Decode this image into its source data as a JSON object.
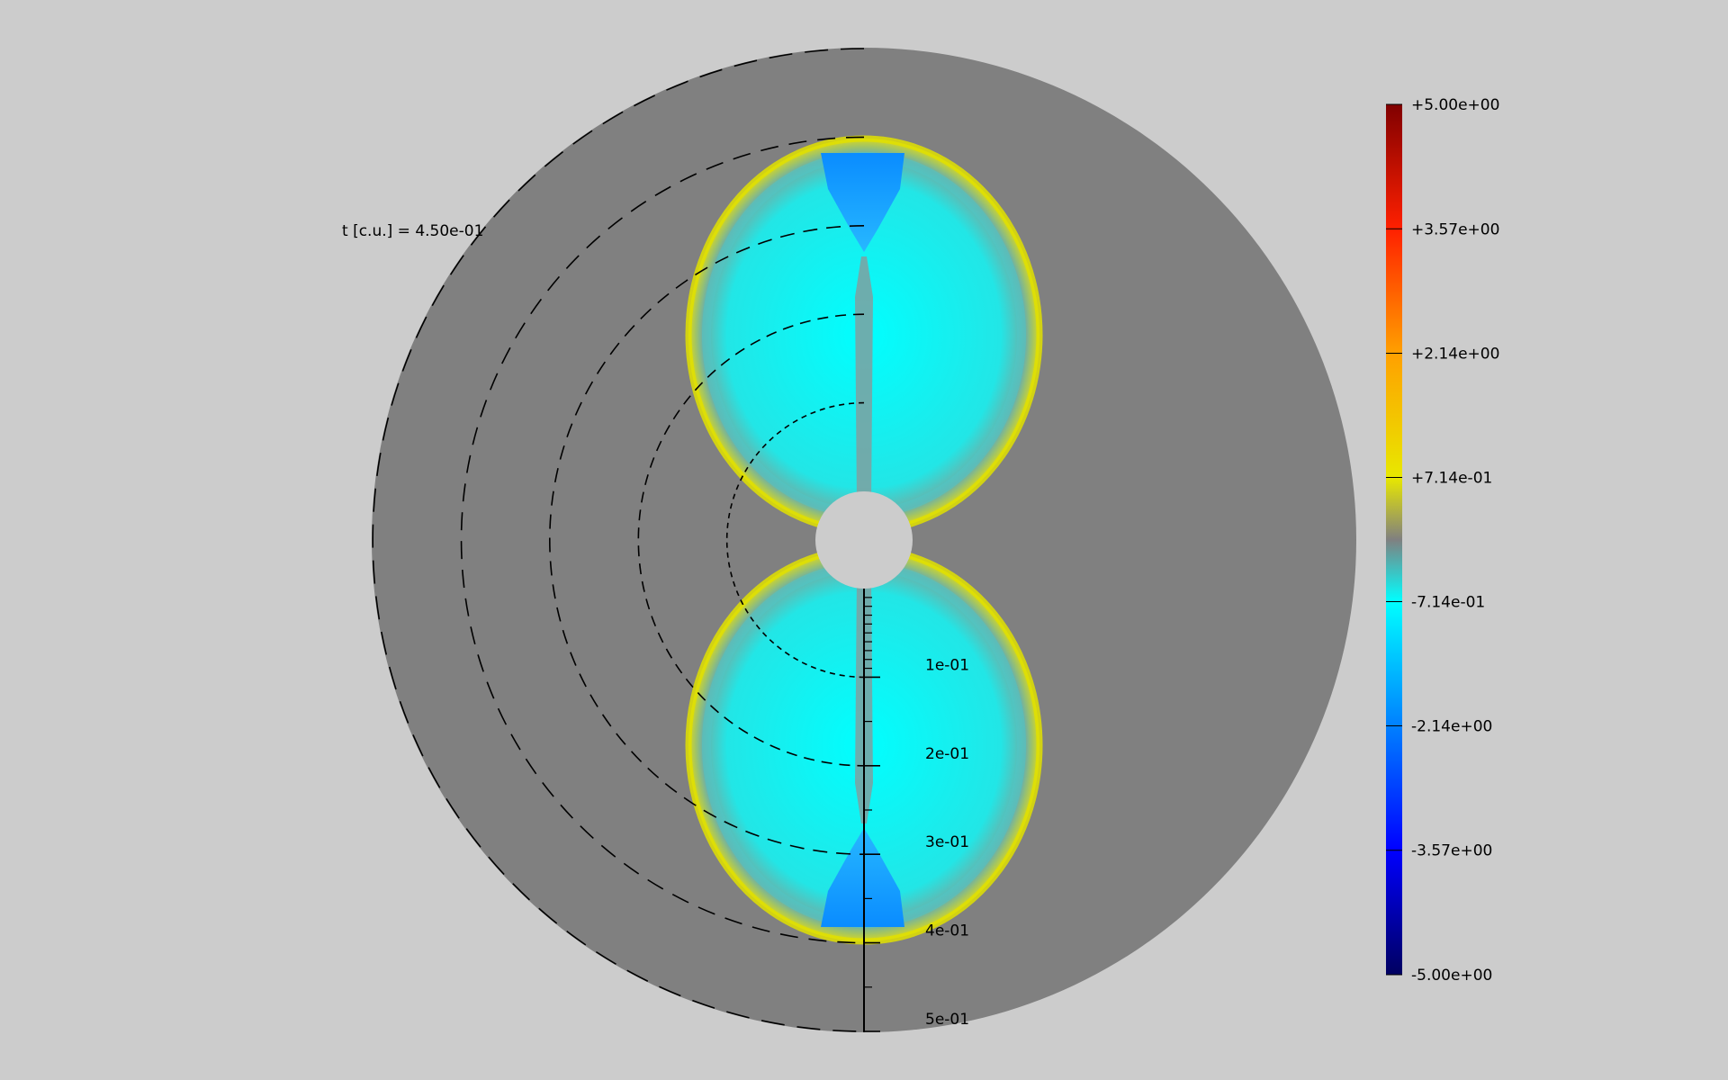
{
  "time_label": "t [c.u.] = 4.50e-01",
  "colors": {
    "background": "#cccccc",
    "disk": "#808080",
    "lobe_fill": "#00ffff",
    "lobe_edge": "#e0e000",
    "lobe_tip": "#0a9aff"
  },
  "chart_data": {
    "type": "heatmap",
    "colorbar": {
      "min": -5.0,
      "max": 5.0,
      "ticks": [
        "+5.00e+00",
        "+3.57e+00",
        "+2.14e+00",
        "+7.14e-01",
        "-7.14e-01",
        "-2.14e+00",
        "-3.57e+00",
        "-5.00e+00"
      ],
      "colormap_stops": [
        {
          "value": -5.0,
          "color": "#000060"
        },
        {
          "value": -3.57,
          "color": "#0000ff"
        },
        {
          "value": -2.14,
          "color": "#0080ff"
        },
        {
          "value": -0.714,
          "color": "#00ffff"
        },
        {
          "value": 0.0,
          "color": "#808080"
        },
        {
          "value": 0.714,
          "color": "#e8e800"
        },
        {
          "value": 2.14,
          "color": "#ffa000"
        },
        {
          "value": 3.57,
          "color": "#ff2000"
        },
        {
          "value": 5.0,
          "color": "#800000"
        }
      ]
    },
    "radial_axis": {
      "ticks": [
        "1e-01",
        "2e-01",
        "3e-01",
        "4e-01",
        "5e-01"
      ],
      "values": [
        0.1,
        0.2,
        0.3,
        0.4,
        0.5
      ]
    },
    "contour_radii": [
      0.1,
      0.2,
      0.3,
      0.4,
      0.5
    ]
  }
}
